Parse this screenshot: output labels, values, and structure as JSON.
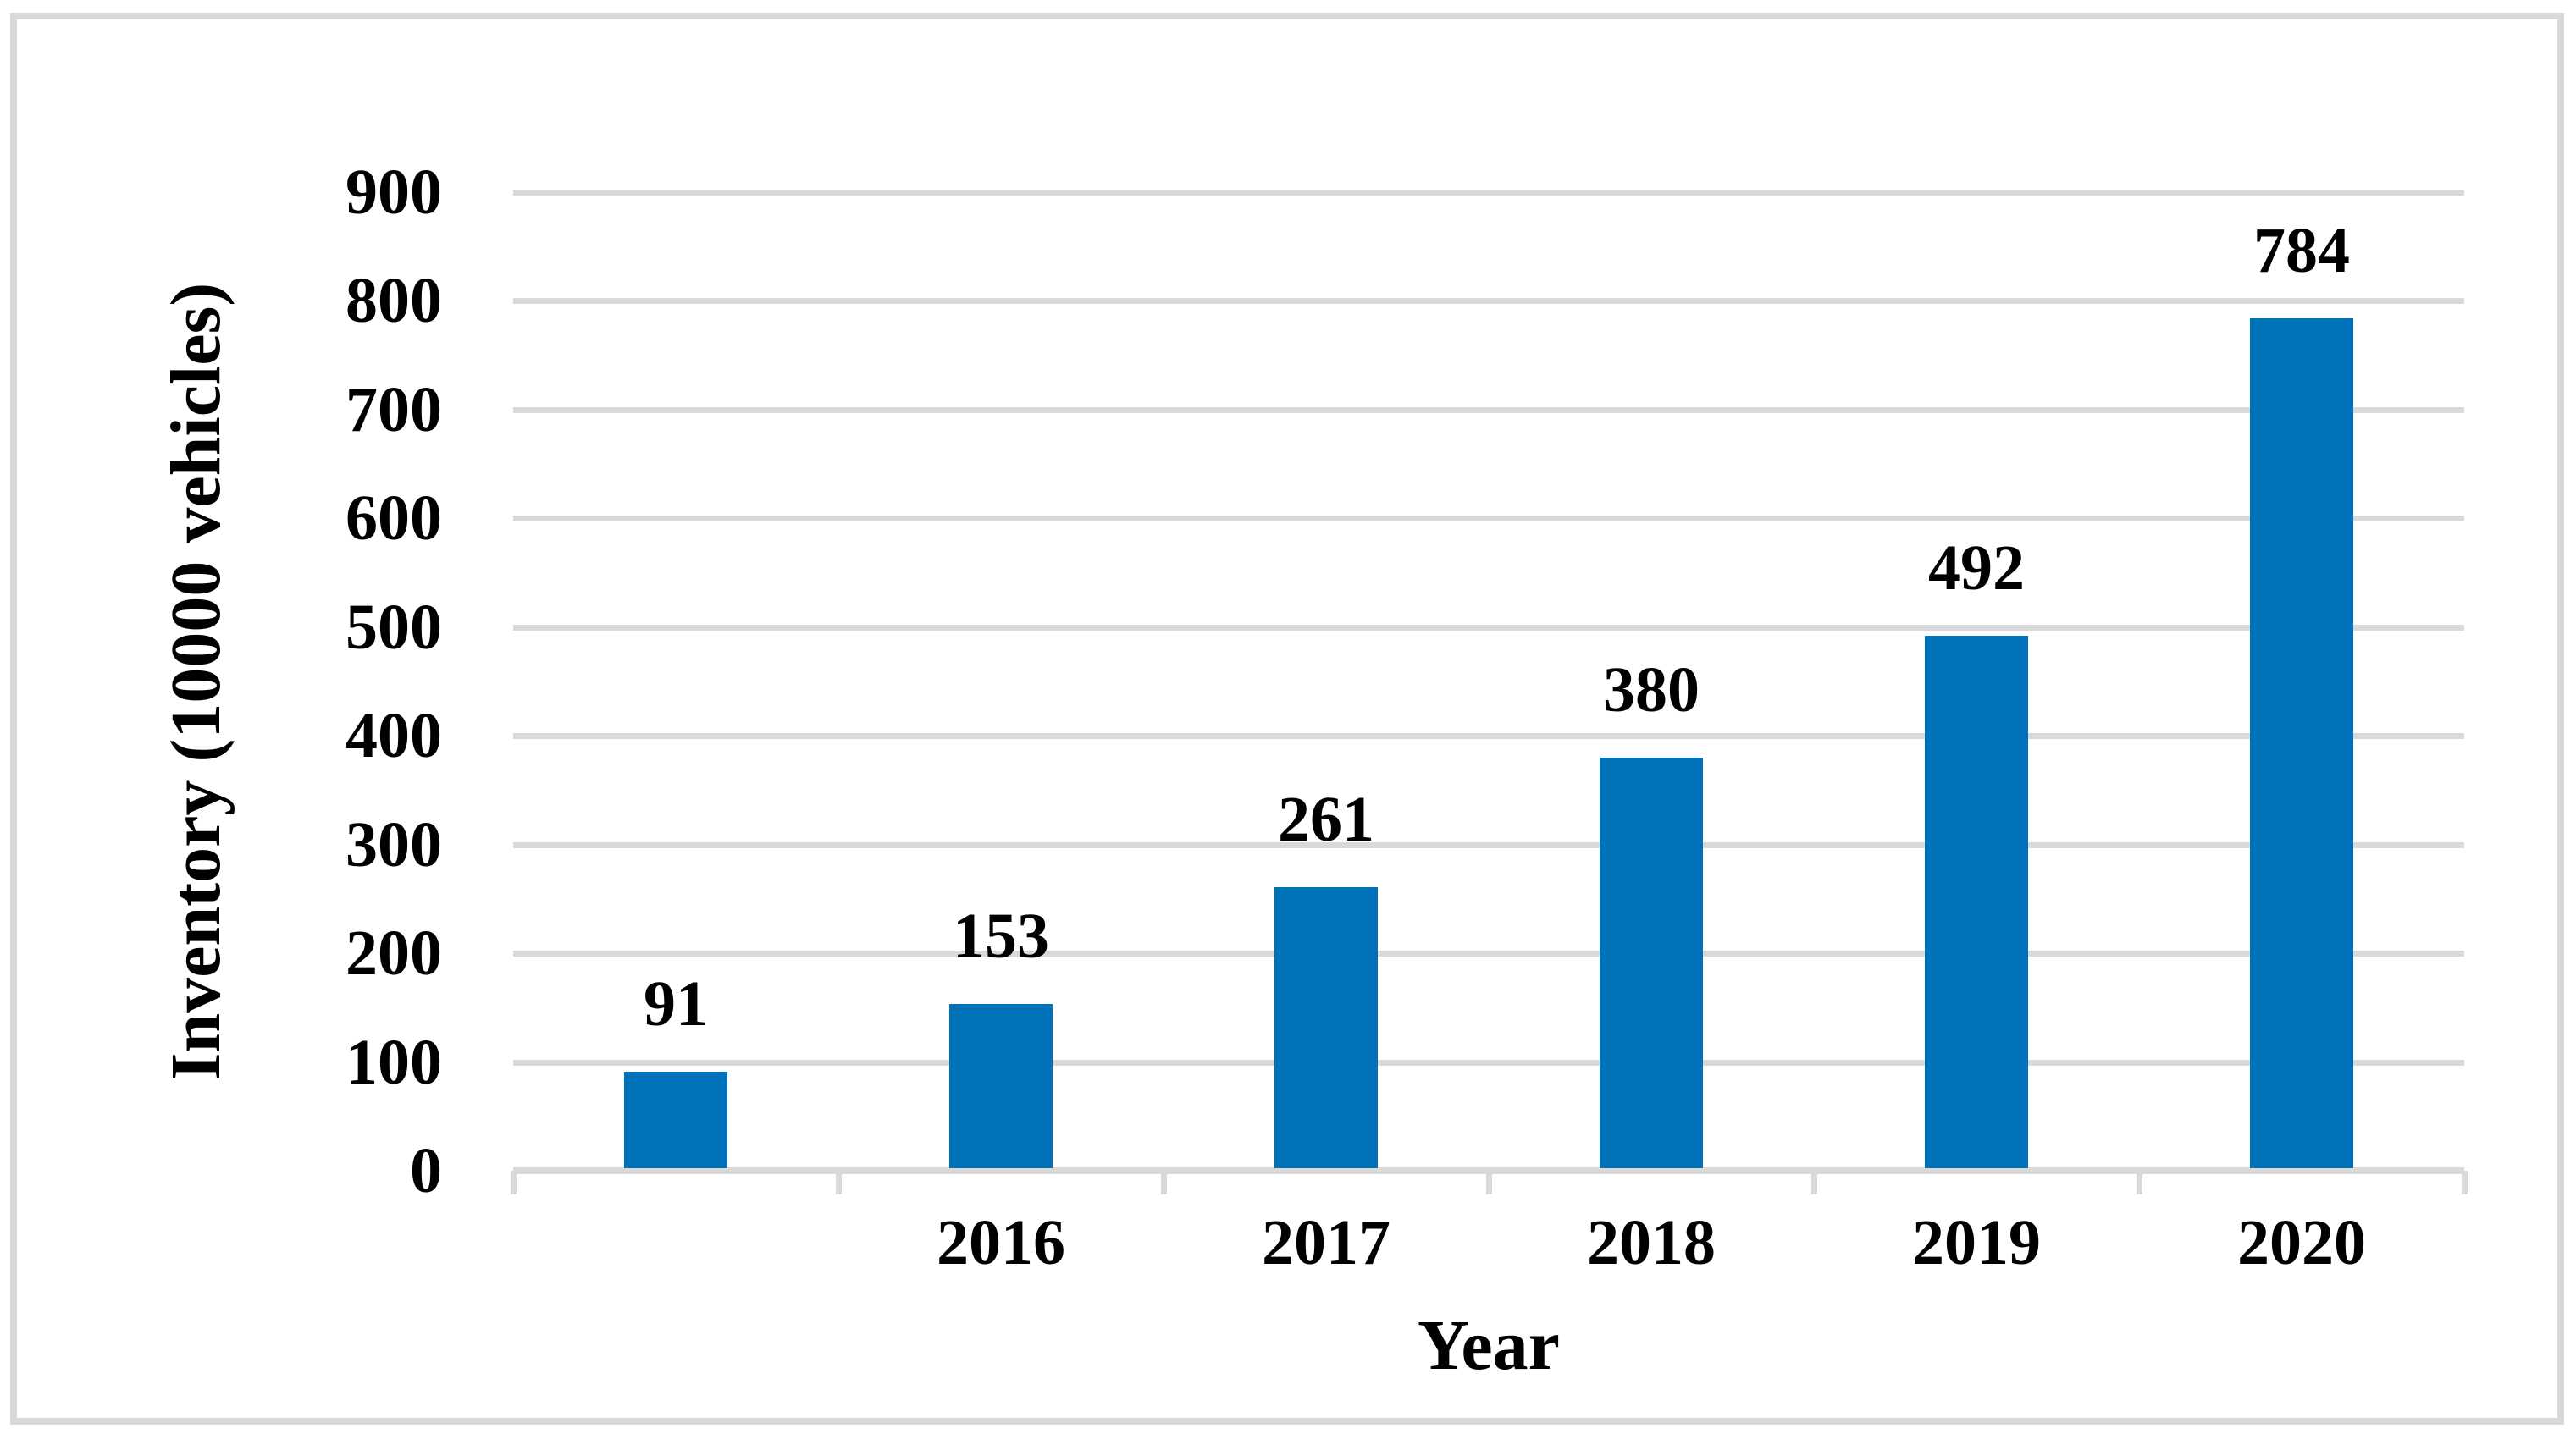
{
  "chart_data": {
    "type": "bar",
    "categories": [
      "",
      "2016",
      "2017",
      "2018",
      "2019",
      "2020"
    ],
    "values": [
      91,
      153,
      261,
      380,
      492,
      784
    ],
    "data_labels": [
      "91",
      "153",
      "261",
      "380",
      "492",
      "784"
    ],
    "xlabel": "Year",
    "ylabel": "Inventory (10000 vehicles)",
    "ylim": [
      0,
      900
    ],
    "yticks": [
      0,
      100,
      200,
      300,
      400,
      500,
      600,
      700,
      800,
      900
    ],
    "grid": "horizontal",
    "legend": "none",
    "bar_color": "#0072BA",
    "gridline_color": "#D9D9D9",
    "axis_line_color": "#D9D9D9",
    "text_color": "#000000",
    "figure_border_color": "#D9D9D9",
    "background": "#FFFFFF"
  }
}
